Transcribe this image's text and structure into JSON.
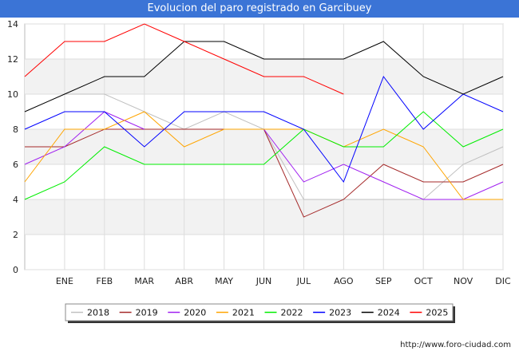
{
  "header": {
    "title": "Evolucion del paro registrado en Garcibuey"
  },
  "footer": {
    "credit": "http://www.foro-ciudad.com"
  },
  "chart_data": {
    "type": "line",
    "title": "Evolucion del paro registrado en Garcibuey",
    "xlabel": "",
    "ylabel": "",
    "categories": [
      "",
      "ENE",
      "FEB",
      "MAR",
      "ABR",
      "MAY",
      "JUN",
      "JUL",
      "AGO",
      "SEP",
      "OCT",
      "NOV",
      "DIC"
    ],
    "ylim": [
      0,
      14
    ],
    "yticks": [
      0,
      2,
      4,
      6,
      8,
      10,
      12,
      14
    ],
    "grid": true,
    "legend_position": "bottom",
    "series": [
      {
        "name": "2018",
        "color": "#c0c0c0",
        "values": [
          null,
          10,
          10,
          9,
          8,
          9,
          8,
          4,
          4,
          4,
          4,
          6,
          7
        ]
      },
      {
        "name": "2019",
        "color": "#a52a2a",
        "values": [
          7,
          7,
          8,
          8,
          8,
          8,
          8,
          3,
          4,
          6,
          5,
          5,
          6
        ]
      },
      {
        "name": "2020",
        "color": "#a020f0",
        "values": [
          6,
          7,
          9,
          8,
          null,
          null,
          8,
          5,
          6,
          5,
          4,
          4,
          5
        ]
      },
      {
        "name": "2021",
        "color": "#ffa500",
        "values": [
          5,
          8,
          8,
          9,
          7,
          8,
          8,
          8,
          7,
          8,
          7,
          4,
          4
        ]
      },
      {
        "name": "2022",
        "color": "#00ee00",
        "values": [
          4,
          5,
          7,
          6,
          6,
          6,
          6,
          8,
          7,
          7,
          9,
          7,
          8
        ]
      },
      {
        "name": "2023",
        "color": "#0000ff",
        "values": [
          8,
          9,
          9,
          7,
          9,
          9,
          9,
          8,
          5,
          11,
          8,
          10,
          9
        ]
      },
      {
        "name": "2024",
        "color": "#000000",
        "values": [
          9,
          10,
          11,
          11,
          13,
          13,
          12,
          12,
          12,
          13,
          11,
          10,
          11
        ]
      },
      {
        "name": "2025",
        "color": "#ff0000",
        "values": [
          11,
          13,
          13,
          14,
          13,
          12,
          11,
          11,
          10,
          null,
          null,
          null,
          null
        ]
      }
    ]
  }
}
